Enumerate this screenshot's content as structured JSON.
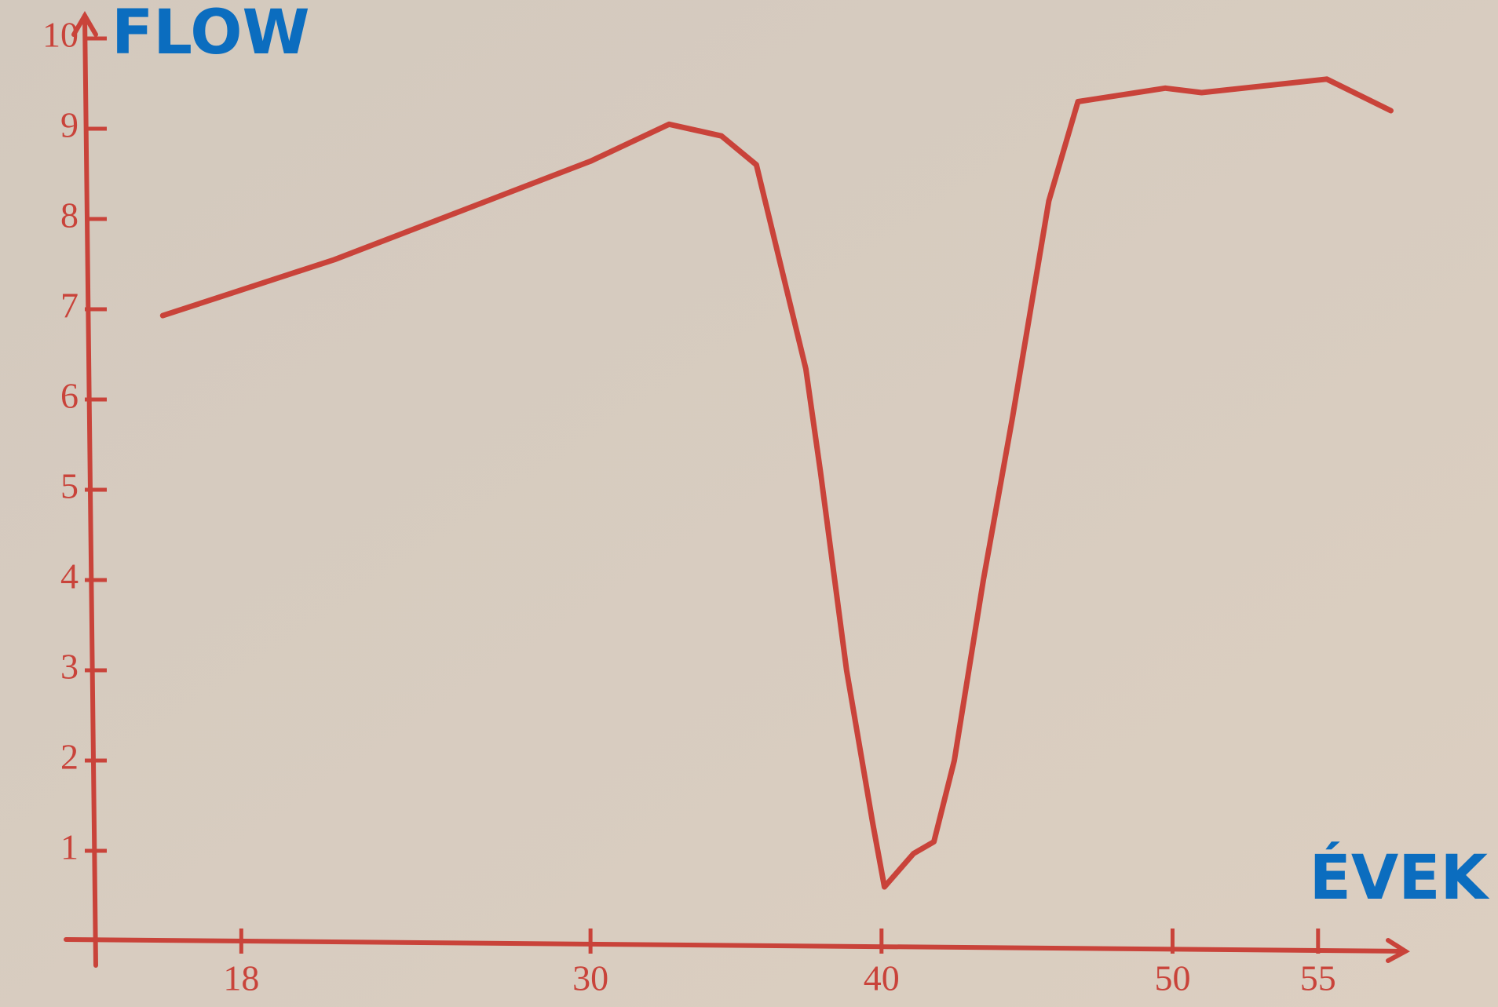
{
  "chart_data": {
    "type": "line",
    "y_label": "FLOW",
    "x_label": "ÉVEK",
    "xlim": [
      13,
      58
    ],
    "xticks": [
      18,
      30,
      40,
      50,
      55
    ],
    "ylim": [
      0,
      10
    ],
    "yticks": [
      1,
      2,
      3,
      4,
      5,
      6,
      7,
      8,
      9,
      10
    ],
    "grid": false,
    "series": [
      {
        "color": "#c9433a",
        "x": [
          15.3,
          21.2,
          30,
          32.7,
          34.5,
          35.7,
          37.4,
          37.9,
          38.8,
          39.7,
          40.1,
          41.1,
          41.8,
          42.5,
          43.5,
          44.5,
          45.75,
          46.75,
          49.75,
          51,
          55.3,
          57.5
        ],
        "values": [
          6.93,
          7.55,
          8.64,
          9.05,
          8.92,
          8.6,
          6.34,
          5.2,
          3.0,
          1.3,
          0.6,
          0.97,
          1.1,
          2.0,
          4.0,
          5.8,
          8.2,
          9.3,
          9.45,
          9.4,
          9.55,
          9.2
        ]
      }
    ]
  }
}
